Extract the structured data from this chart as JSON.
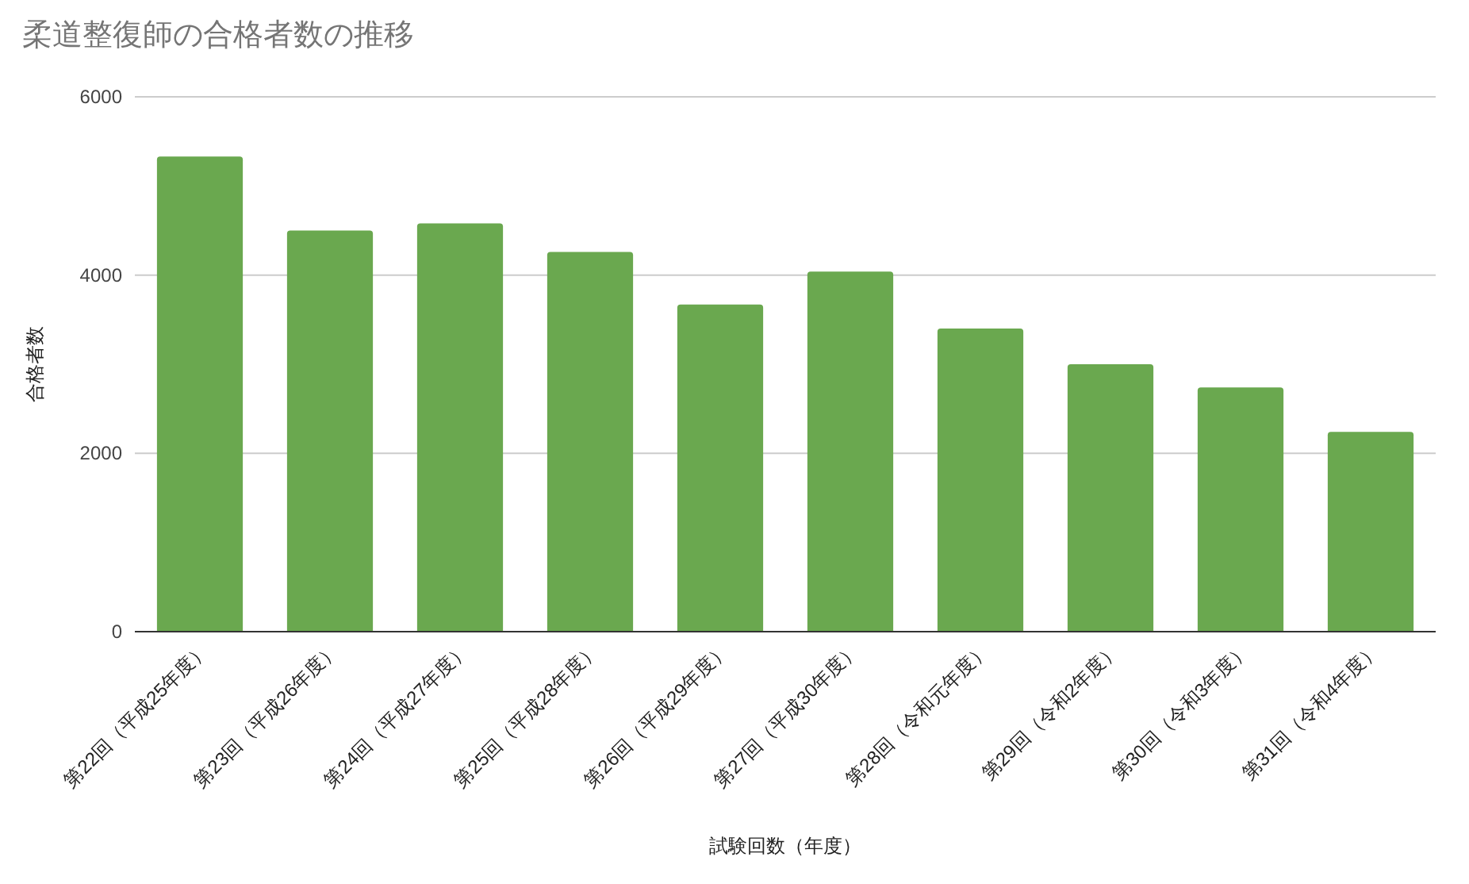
{
  "chart_data": {
    "type": "bar",
    "title": "柔道整復師の合格者数の推移",
    "xlabel": "試験回数（年度）",
    "ylabel": "合格者数",
    "categories": [
      "第22回（平成25年度）",
      "第23回（平成26年度）",
      "第24回（平成27年度）",
      "第25回（平成28年度）",
      "第26回（平成29年度）",
      "第27回（平成30年度）",
      "第28回（令和元年度）",
      "第29回（令和2年度）",
      "第30回（令和3年度）",
      "第31回（令和4年度）"
    ],
    "values": [
      5330,
      4500,
      4580,
      4260,
      3670,
      4040,
      3400,
      3000,
      2740,
      2240
    ],
    "color": "#6aa84f",
    "ylim": [
      0,
      6000
    ],
    "yticks": [
      0,
      2000,
      4000,
      6000
    ],
    "grid": "y"
  }
}
